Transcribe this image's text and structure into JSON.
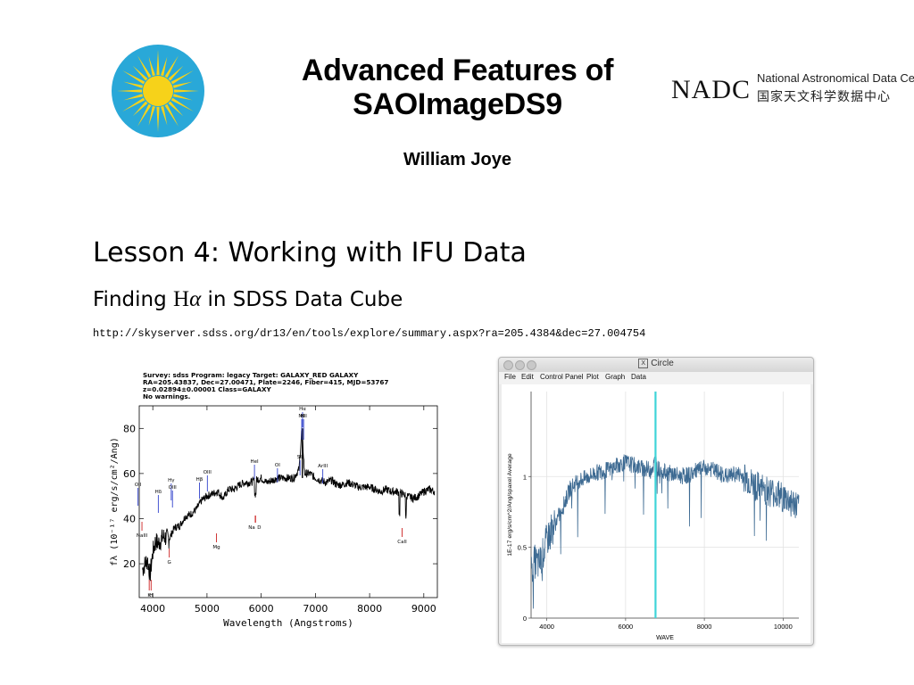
{
  "slide": {
    "title_line1": "Advanced Features of",
    "title_line2": "SAOImageDS9",
    "author": "William Joye",
    "lesson": "Lesson 4:  Working with IFU Data",
    "subtitle_before": "Finding ",
    "subtitle_ha": "H",
    "subtitle_alpha": "α",
    "subtitle_after": " in SDSS Data Cube",
    "url": "http://skyserver.sdss.org/dr13/en/tools/explore/summary.aspx?ra=205.4384&dec=27.004754"
  },
  "nadc": {
    "mark": "NADC",
    "name_en": "National Astronomical Data Center",
    "name_cn": "国家天文科学数据中心"
  },
  "sdss_plot": {
    "info_lines": [
      "Survey: sdss  Program: legacy  Target: GALAXY_RED GALAXY",
      "RA=205.43837, Dec=27.00471, Plate=2246, Fiber=415, MJD=53767",
      "z=0.02894±0.00001  Class=GALAXY",
      "No warnings."
    ],
    "xlabel": "Wavelength (Angstroms)",
    "ylabel": "fλ (10⁻¹⁷ erg/s/cm²/Ang)",
    "xticks": [
      "4000",
      "5000",
      "6000",
      "7000",
      "8000",
      "9000"
    ],
    "yticks": [
      "20",
      "40",
      "60",
      "80"
    ],
    "lines": {
      "emission": [
        "Hα",
        "NII",
        "NII",
        "OII",
        "Hδ",
        "Hγ",
        "OIII",
        "Hβ",
        "OIII",
        "HeI",
        "OI",
        "SII",
        "ArIII"
      ],
      "absorption": [
        "NaIII",
        "K",
        "H",
        "G",
        "Mg",
        "Na",
        "D",
        "CaII"
      ]
    }
  },
  "window": {
    "title": "Circle",
    "title_icon": "x11-icon",
    "menu": [
      "File",
      "Edit",
      "Control Panel",
      "Plot",
      "Graph",
      "Data"
    ],
    "plot": {
      "xlabel": "WAVE",
      "ylabel": "1E-17 erg/s/cm^2/Ang/spaxel Average",
      "xticks": [
        "4000",
        "6000",
        "8000",
        "10000"
      ],
      "yticks": [
        "0",
        "0.5",
        "1"
      ]
    }
  },
  "chart_data": [
    {
      "type": "line",
      "title": "",
      "xlabel": "Wavelength (Angstroms)",
      "ylabel": "fλ (10⁻¹⁷ erg/s/cm²/Ang)",
      "xlim": [
        3750,
        9250
      ],
      "ylim": [
        5,
        90
      ],
      "grid": false,
      "series": [
        {
          "color": "#000000",
          "x": [
            3800,
            3900,
            3950,
            4000,
            4050,
            4100,
            4200,
            4300,
            4400,
            4500,
            4600,
            4700,
            4800,
            4900,
            5000,
            5100,
            5200,
            5300,
            5400,
            5500,
            5600,
            5700,
            5800,
            5900,
            6000,
            6100,
            6200,
            6300,
            6400,
            6500,
            6600,
            6700,
            6750,
            6800,
            6900,
            7000,
            7100,
            7200,
            7300,
            7400,
            7500,
            7600,
            7700,
            7800,
            7900,
            8000,
            8100,
            8200,
            8300,
            8400,
            8500,
            8600,
            8700,
            8800,
            8900,
            9000,
            9100,
            9200
          ],
          "y": [
            17,
            22,
            15,
            25,
            30,
            29,
            32,
            31,
            36,
            37,
            41,
            42,
            44,
            48,
            50,
            51,
            52,
            49,
            53,
            53,
            55,
            56,
            56,
            57,
            58,
            56,
            57,
            58,
            58,
            58,
            58,
            62,
            80,
            60,
            60,
            58,
            57,
            56,
            57,
            55,
            55,
            56,
            55,
            54,
            54,
            54,
            53,
            52,
            53,
            52,
            52,
            51,
            50,
            49,
            50,
            52,
            53,
            52
          ]
        }
      ]
    },
    {
      "type": "line",
      "title": "",
      "xlabel": "WAVE",
      "ylabel": "1E-17 erg/s/cm^2/Ang/spaxel Average",
      "xlim": [
        3600,
        10400
      ],
      "ylim": [
        0,
        1.6
      ],
      "grid": true,
      "series": [
        {
          "color": "#3d6a92",
          "x": [
            3600,
            3700,
            3800,
            3900,
            4000,
            4100,
            4200,
            4300,
            4400,
            4500,
            4600,
            4800,
            5000,
            5200,
            5400,
            5600,
            5800,
            6000,
            6200,
            6400,
            6600,
            6700,
            6760,
            6800,
            7000,
            7200,
            7400,
            7600,
            7800,
            8000,
            8200,
            8400,
            8600,
            8800,
            9000,
            9200,
            9400,
            9600,
            9800,
            10000,
            10200,
            10400
          ],
          "y": [
            0.35,
            0.4,
            0.38,
            0.45,
            0.55,
            0.62,
            0.66,
            0.72,
            0.78,
            0.85,
            0.92,
            0.97,
            0.99,
            1.02,
            1.04,
            1.05,
            1.08,
            1.1,
            1.08,
            1.06,
            1.05,
            1.07,
            1.12,
            1.06,
            1.03,
            1.02,
            1.0,
            1.01,
            1.04,
            1.06,
            1.05,
            1.02,
            1.0,
            1.02,
            1.0,
            0.95,
            0.92,
            0.9,
            0.88,
            0.85,
            0.82,
            0.78
          ]
        }
      ],
      "highlight_x": 6760,
      "highlight_color": "#3fd4d8"
    }
  ]
}
